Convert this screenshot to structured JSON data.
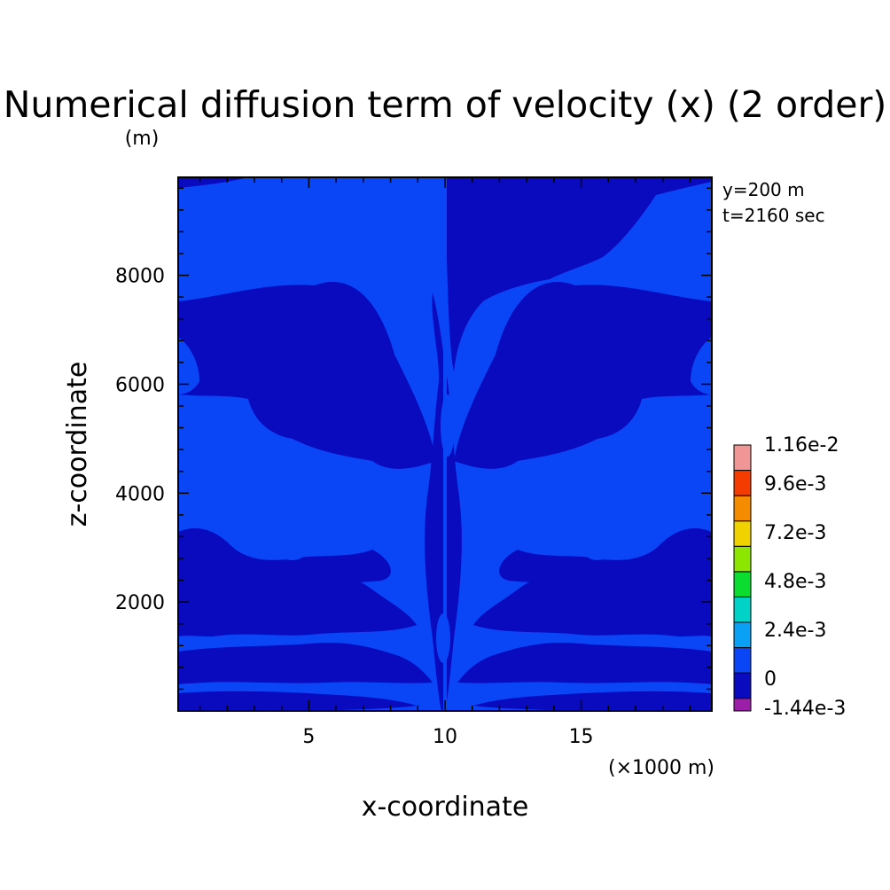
{
  "chart_data": {
    "type": "heatmap",
    "title": "Numerical diffusion term of velocity (x) (2 order)",
    "xlabel": "x-coordinate",
    "ylabel": "z-coordinate",
    "x_unit": "(×1000 m)",
    "y_unit": "(m)",
    "annotations": [
      "y=200 m",
      "t=2160 sec"
    ],
    "xlim": [
      0.2,
      19.8
    ],
    "ylim": [
      0,
      9800
    ],
    "x_ticks": [
      {
        "value": 5,
        "label": "5"
      },
      {
        "value": 10,
        "label": "10"
      },
      {
        "value": 15,
        "label": "15"
      }
    ],
    "y_ticks": [
      {
        "value": 2000,
        "label": "2000"
      },
      {
        "value": 4000,
        "label": "4000"
      },
      {
        "value": 6000,
        "label": "6000"
      },
      {
        "value": 8000,
        "label": "8000"
      }
    ],
    "colorbar": {
      "levels": [
        -0.00144,
        0,
        0.0012,
        0.0024,
        0.0036,
        0.0048,
        0.006,
        0.0072,
        0.0084,
        0.0096,
        0.0108,
        0.0116
      ],
      "labels": [
        "1.16e-2",
        "9.6e-3",
        "7.2e-3",
        "4.8e-3",
        "2.4e-3",
        "0",
        "-1.44e-3"
      ],
      "colors": [
        "#9b1fa8",
        "#0a0abf",
        "#0a46f5",
        "#0aa0f5",
        "#00d2c8",
        "#0adc30",
        "#8ce600",
        "#f0d200",
        "#f58c00",
        "#f53c00",
        "#f09696"
      ]
    },
    "regions_note": "Field mostly alternates between the 0 to 1.2e-3 band and the -1.44e-3 to 0 band, symmetric about x = 10"
  }
}
